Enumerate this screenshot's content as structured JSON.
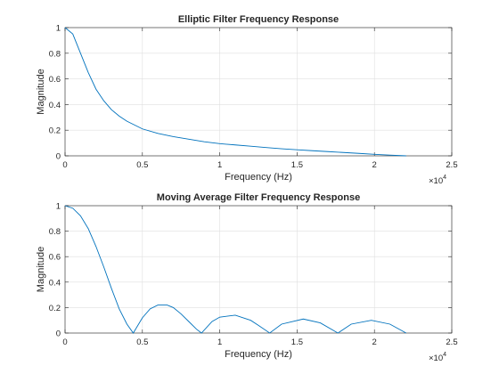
{
  "chart_data": [
    {
      "type": "line",
      "title": "Elliptic Filter Frequency Response",
      "xlabel": "Frequency (Hz)",
      "ylabel": "Magnitude",
      "xlim": [
        0,
        25000
      ],
      "ylim": [
        0,
        1
      ],
      "x_tick_labels": [
        "0",
        "0.5",
        "1",
        "1.5",
        "2",
        "2.5"
      ],
      "x_tick_values": [
        0,
        5000,
        10000,
        15000,
        20000,
        25000
      ],
      "y_tick_labels": [
        "0",
        "0.2",
        "0.4",
        "0.6",
        "0.8",
        "1"
      ],
      "y_tick_values": [
        0,
        0.2,
        0.4,
        0.6,
        0.8,
        1
      ],
      "x_exponent_base": "×10",
      "x_exponent": "4",
      "grid": true,
      "series": [
        {
          "x": [
            0,
            500,
            1000,
            1500,
            2000,
            2500,
            3000,
            3500,
            4000,
            5000,
            6000,
            7000,
            8000,
            9000,
            10000,
            11000,
            12000,
            13000,
            14000,
            15000,
            16000,
            17000,
            18000,
            19000,
            20000,
            21000,
            22050
          ],
          "y": [
            1.0,
            0.95,
            0.8,
            0.65,
            0.52,
            0.43,
            0.36,
            0.31,
            0.27,
            0.21,
            0.175,
            0.15,
            0.13,
            0.11,
            0.095,
            0.085,
            0.075,
            0.065,
            0.055,
            0.047,
            0.04,
            0.033,
            0.026,
            0.019,
            0.012,
            0.006,
            0.0
          ]
        }
      ]
    },
    {
      "type": "line",
      "title": "Moving Average Filter Frequency Response",
      "xlabel": "Frequency (Hz)",
      "ylabel": "Magnitude",
      "xlim": [
        0,
        25000
      ],
      "ylim": [
        0,
        1
      ],
      "x_tick_labels": [
        "0",
        "0.5",
        "1",
        "1.5",
        "2",
        "2.5"
      ],
      "x_tick_values": [
        0,
        5000,
        10000,
        15000,
        20000,
        25000
      ],
      "y_tick_labels": [
        "0",
        "0.2",
        "0.4",
        "0.6",
        "0.8",
        "1"
      ],
      "y_tick_values": [
        0,
        0.2,
        0.4,
        0.6,
        0.8,
        1
      ],
      "x_exponent_base": "×10",
      "x_exponent": "4",
      "grid": true,
      "series": [
        {
          "x": [
            0,
            500,
            1000,
            1500,
            2000,
            2500,
            3000,
            3500,
            4000,
            4410,
            5000,
            5500,
            6000,
            6600,
            7000,
            7500,
            8000,
            8500,
            8820,
            9500,
            10000,
            11000,
            12000,
            12500,
            13230,
            14000,
            15400,
            16500,
            17640,
            18500,
            19800,
            21000,
            22050
          ],
          "y": [
            1.0,
            0.98,
            0.92,
            0.82,
            0.68,
            0.52,
            0.35,
            0.19,
            0.07,
            0.0,
            0.12,
            0.19,
            0.22,
            0.22,
            0.2,
            0.15,
            0.09,
            0.03,
            0.0,
            0.09,
            0.125,
            0.14,
            0.1,
            0.06,
            0.0,
            0.07,
            0.11,
            0.08,
            0.0,
            0.07,
            0.1,
            0.07,
            0.0
          ]
        }
      ]
    }
  ]
}
